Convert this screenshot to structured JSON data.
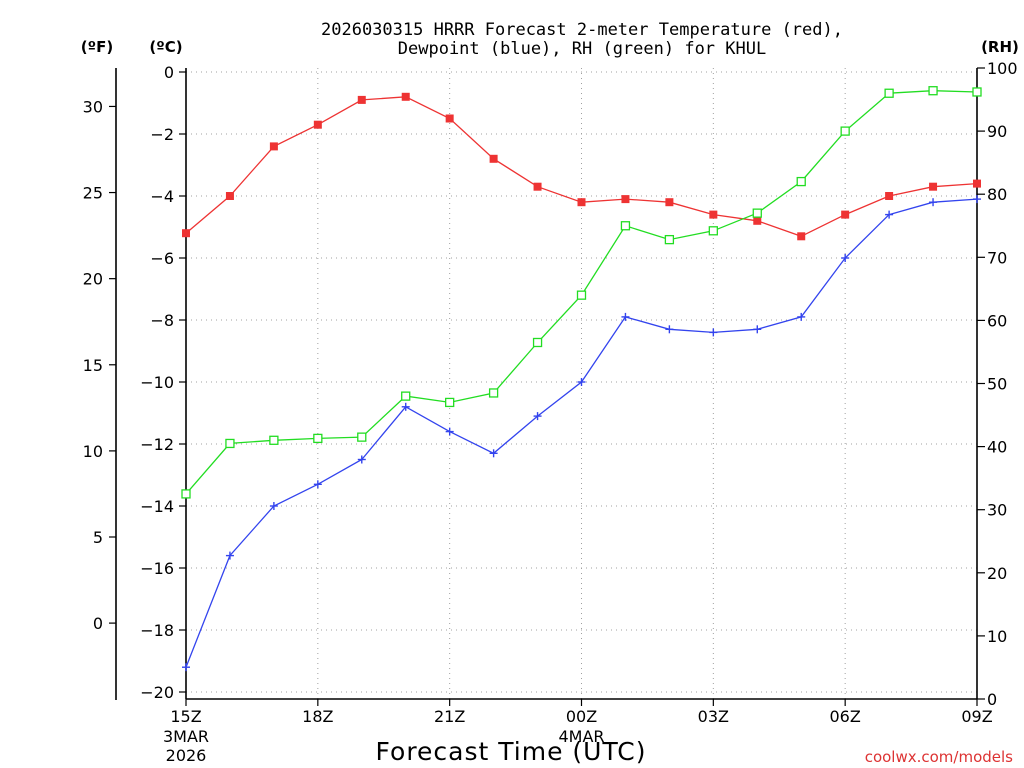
{
  "chart_data": {
    "type": "line",
    "title_line1": "2026030315 HRRR Forecast 2-meter Temperature (red),",
    "title_line2": "Dewpoint (blue), RH (green) for KHUL",
    "xlabel": "Forecast Time (UTC)",
    "watermark": "coolwx.com/models",
    "unit_f": "(ºF)",
    "unit_c": "(ºC)",
    "unit_rh": "(RH)",
    "x": [
      0,
      1,
      2,
      3,
      4,
      5,
      6,
      7,
      8,
      9,
      10,
      11,
      12,
      13,
      14,
      15,
      16,
      17,
      18
    ],
    "xlim": [
      0,
      18
    ],
    "x_ticks": [
      {
        "x": 0,
        "label": "15Z",
        "date": "3MAR",
        "year": "2026"
      },
      {
        "x": 3,
        "label": "18Z"
      },
      {
        "x": 6,
        "label": "21Z"
      },
      {
        "x": 9,
        "label": "00Z",
        "date": "4MAR"
      },
      {
        "x": 12,
        "label": "03Z"
      },
      {
        "x": 15,
        "label": "06Z"
      },
      {
        "x": 18,
        "label": "09Z"
      }
    ],
    "y_celsius": {
      "range": [
        -20.5,
        0.2
      ],
      "ticks": [
        0,
        -2,
        -4,
        -6,
        -8,
        -10,
        -12,
        -14,
        -16,
        -18,
        -20
      ]
    },
    "y_fahrenheit": {
      "ticks": [
        30,
        25,
        20,
        15,
        10,
        5,
        0
      ]
    },
    "y_rh": {
      "range": [
        0,
        100
      ],
      "ticks": [
        0,
        10,
        20,
        30,
        40,
        50,
        60,
        70,
        80,
        90,
        100
      ]
    },
    "series": [
      {
        "name": "Temperature",
        "axis": "celsius",
        "color": "#ee3333",
        "marker": "filled-square",
        "values": [
          -5.2,
          -4.0,
          -2.4,
          -1.7,
          -0.9,
          -0.8,
          -1.5,
          -2.8,
          -3.7,
          -4.2,
          -4.1,
          -4.2,
          -4.6,
          -4.8,
          -5.3,
          -4.6,
          -4.0,
          -3.7,
          -3.6
        ]
      },
      {
        "name": "Dewpoint",
        "axis": "celsius",
        "color": "#3344ee",
        "marker": "plus",
        "values": [
          -19.2,
          -15.6,
          -14.0,
          -13.3,
          -12.5,
          -10.8,
          -11.6,
          -12.3,
          -11.1,
          -10.0,
          -7.9,
          -8.3,
          -8.4,
          -8.3,
          -7.9,
          -6.0,
          -4.6,
          -4.2,
          -4.1
        ]
      },
      {
        "name": "RH",
        "axis": "rh",
        "color": "#22dd22",
        "marker": "open-square",
        "values": [
          32.5,
          40.5,
          41.0,
          41.3,
          41.5,
          48.0,
          47.0,
          48.5,
          56.5,
          64.0,
          75.0,
          72.8,
          74.2,
          77.0,
          82.0,
          90.0,
          96.0,
          96.4,
          96.2
        ]
      }
    ]
  }
}
